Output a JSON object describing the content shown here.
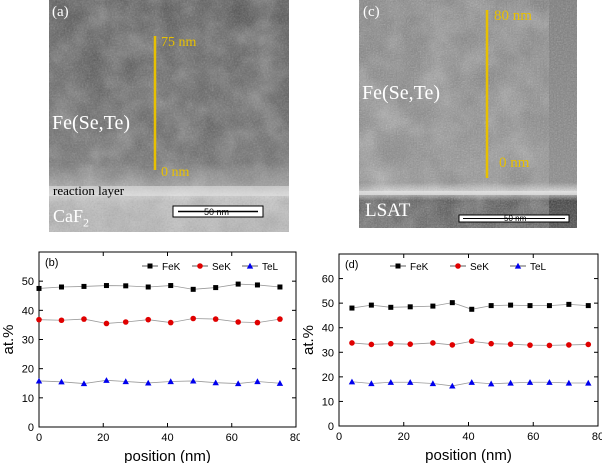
{
  "panel_a": {
    "label": "(a)",
    "material": "Fe(Se,Te)",
    "top_label": "75 nm",
    "bottom_label": "0 nm",
    "layer_label": "reaction layer",
    "substrate": "CaF",
    "substrate_sub": "2",
    "scale_label": "50 nm"
  },
  "panel_c": {
    "label": "(c)",
    "material": "Fe(Se,Te)",
    "top_label": "80 nm",
    "bottom_label": "0 nm",
    "substrate": "LSAT",
    "scale_label": "50 nm"
  },
  "colors": {
    "fe": "#000000",
    "se": "#e00000",
    "te": "#0000ee",
    "annot": "#e8c000"
  },
  "chart_data": [
    {
      "type": "line",
      "label": "(b)",
      "xlabel": "position (nm)",
      "ylabel": "at.%",
      "xlim": [
        0,
        80
      ],
      "ylim": [
        0,
        60
      ],
      "xticks": [
        0,
        20,
        40,
        60,
        80
      ],
      "yticks": [
        0,
        10,
        20,
        30,
        40,
        50
      ],
      "x": [
        0,
        7,
        14,
        21,
        27,
        34,
        41,
        48,
        55,
        62,
        68,
        75
      ],
      "series": [
        {
          "name": "FeK",
          "marker": "square",
          "values": [
            47.5,
            48.0,
            48.2,
            48.5,
            48.4,
            48.0,
            48.5,
            47.2,
            47.8,
            49.0,
            48.7,
            48.0
          ]
        },
        {
          "name": "SeK",
          "marker": "circle",
          "values": [
            36.8,
            36.6,
            37.0,
            35.5,
            36.0,
            36.8,
            35.8,
            37.2,
            37.0,
            36.0,
            35.8,
            37.0
          ]
        },
        {
          "name": "TeL",
          "marker": "triangle",
          "values": [
            15.8,
            15.5,
            14.9,
            16.0,
            15.6,
            15.1,
            15.6,
            15.8,
            15.2,
            14.9,
            15.6,
            15.0
          ]
        }
      ]
    },
    {
      "type": "line",
      "label": "(d)",
      "xlabel": "position (nm)",
      "ylabel": "at.%",
      "xlim": [
        0,
        80
      ],
      "ylim": [
        0,
        70
      ],
      "xticks": [
        0,
        20,
        40,
        60,
        80
      ],
      "yticks": [
        0,
        10,
        20,
        30,
        40,
        50,
        60
      ],
      "x": [
        4,
        10,
        16,
        22,
        29,
        35,
        41,
        47,
        53,
        59,
        65,
        71,
        77
      ],
      "series": [
        {
          "name": "FeK",
          "marker": "square",
          "values": [
            48.0,
            49.2,
            48.3,
            48.5,
            48.8,
            50.2,
            47.5,
            49.0,
            49.2,
            49.0,
            49.0,
            49.5,
            49.0
          ]
        },
        {
          "name": "SeK",
          "marker": "circle",
          "values": [
            33.8,
            33.2,
            33.5,
            33.3,
            33.8,
            33.0,
            34.5,
            33.5,
            33.3,
            32.9,
            32.8,
            33.0,
            33.2
          ]
        },
        {
          "name": "TeL",
          "marker": "triangle",
          "values": [
            18.0,
            17.3,
            17.8,
            17.8,
            17.3,
            16.3,
            17.8,
            17.2,
            17.5,
            17.8,
            17.8,
            17.5,
            17.5
          ]
        }
      ]
    }
  ]
}
